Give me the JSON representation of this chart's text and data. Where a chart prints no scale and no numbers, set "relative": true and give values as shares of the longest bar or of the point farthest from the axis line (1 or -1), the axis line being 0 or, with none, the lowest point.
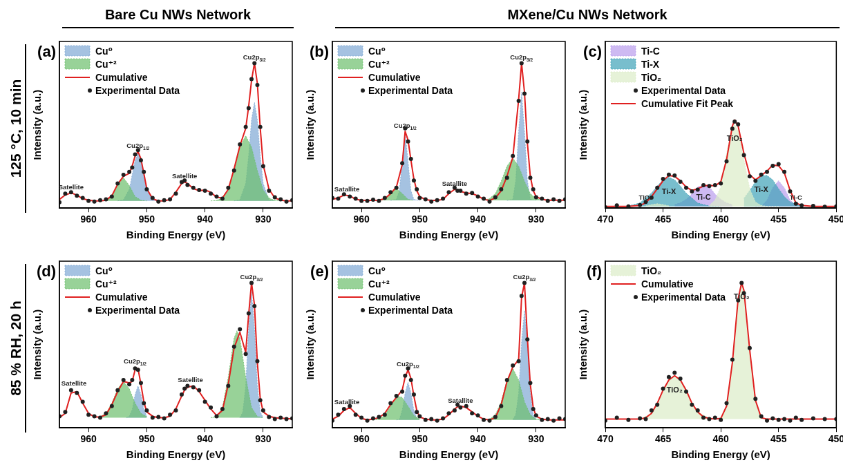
{
  "chart_data": [
    {
      "type": "area",
      "title": "Bare Cu NWs Network",
      "xlabel": "Binding Energy (eV)",
      "ylabel": "Intensity (a.u.)",
      "relative": true,
      "legend": "top left",
      "xlim": [
        965,
        925
      ],
      "xticks": [
        960,
        950,
        940,
        930
      ],
      "x": [
        965,
        964,
        963,
        962,
        961,
        960,
        959,
        958,
        957,
        956,
        955,
        954,
        953,
        952.5,
        952,
        951.5,
        951,
        950.5,
        950,
        949,
        948,
        947,
        946,
        945,
        944,
        943.5,
        943,
        942,
        941,
        940,
        939,
        938,
        937,
        936,
        935,
        934,
        933,
        932.5,
        932,
        931.5,
        931,
        930.5,
        930,
        929,
        928,
        927,
        926,
        925
      ],
      "annotations": [
        "(a)",
        "125 °C, 10 min",
        {
          "text": "Satellite",
          "x": 963,
          "y": 0.105
        },
        {
          "text": "Cu2p$_{1/2}$",
          "x": 951.5,
          "y": 0.39
        },
        {
          "text": "Satellite",
          "x": 943.5,
          "y": 0.18
        },
        {
          "text": "Cu2p$_{3/2}$",
          "x": 931.5,
          "y": 1
        }
      ],
      "series": [
        {
          "name": "Cu⁰",
          "type": "area",
          "color": "#7fa8d4",
          "x": [
            955,
            954,
            953,
            952.5,
            952,
            951.5,
            951,
            950.5,
            950,
            949,
            948,
            940,
            935,
            934,
            933,
            932.5,
            932,
            931.5,
            931,
            930.5,
            930,
            929,
            928
          ],
          "values": [
            0.05,
            0.057,
            0.13,
            0.23,
            0.33,
            0.38,
            0.33,
            0.23,
            0.13,
            0.057,
            0.05,
            null,
            0.05,
            0.057,
            0.17,
            0.36,
            0.61,
            0.73,
            0.61,
            0.36,
            0.17,
            0.057,
            0.05
          ]
        },
        {
          "name": "Cu⁺²",
          "type": "area",
          "color": "#6cbf6c",
          "x": [
            958,
            957,
            956,
            955,
            954,
            953,
            952,
            951,
            950,
            945,
            939,
            938,
            937,
            936,
            935,
            934,
            933,
            932,
            931,
            930,
            929,
            928,
            927
          ],
          "values": [
            0.05,
            0.054,
            0.08,
            0.156,
            0.21,
            0.156,
            0.08,
            0.054,
            0.05,
            null,
            0.05,
            0.053,
            0.07,
            0.126,
            0.26,
            0.42,
            0.5,
            0.42,
            0.26,
            0.126,
            0.07,
            0.053,
            0.05
          ]
        },
        {
          "name": "Cumulative",
          "type": "line",
          "color": "#e02020",
          "values": [
            0.06,
            0.09,
            0.105,
            0.09,
            0.065,
            0.055,
            0.05,
            0.05,
            0.055,
            0.085,
            0.165,
            0.22,
            0.24,
            0.29,
            0.36,
            0.39,
            0.34,
            0.24,
            0.135,
            0.065,
            0.05,
            0.05,
            0.06,
            0.11,
            0.17,
            0.18,
            0.17,
            0.135,
            0.12,
            0.125,
            0.11,
            0.075,
            0.07,
            0.13,
            0.27,
            0.43,
            0.55,
            0.7,
            0.88,
            1,
            0.86,
            0.55,
            0.3,
            0.13,
            0.07,
            0.055,
            0.05,
            0.05
          ]
        },
        {
          "name": "Experimental Data",
          "type": "scatter",
          "marker": "circle",
          "color": "#202020",
          "values": [
            0.04,
            0.1,
            0.11,
            0.085,
            0.07,
            0.05,
            0.045,
            0.055,
            0.06,
            0.08,
            0.17,
            0.23,
            0.25,
            0.28,
            0.37,
            0.4,
            0.33,
            0.25,
            0.13,
            0.07,
            0.045,
            0.055,
            0.06,
            0.1,
            0.18,
            0.19,
            0.16,
            0.14,
            0.125,
            0.12,
            0.1,
            0.08,
            0.065,
            0.14,
            0.26,
            0.44,
            0.56,
            0.69,
            0.89,
            1,
            0.85,
            0.56,
            0.29,
            0.12,
            0.075,
            0.06,
            0.045,
            0.055
          ]
        }
      ]
    },
    {
      "type": "area",
      "title": "MXene/Cu NWs Network",
      "xlabel": "Binding Energy (eV)",
      "ylabel": "Intensity (a.u.)",
      "relative": true,
      "legend": "top left",
      "xlim": [
        965,
        925
      ],
      "xticks": [
        960,
        950,
        940,
        930
      ],
      "x": [
        965,
        964,
        963,
        962,
        961,
        960,
        959,
        958,
        957,
        956,
        955,
        954,
        953,
        952.5,
        952,
        951.5,
        951,
        950.5,
        950,
        949,
        948,
        947,
        946,
        945,
        944,
        943.5,
        943,
        942,
        941,
        940,
        939,
        938,
        937,
        936,
        935,
        934,
        933,
        932.5,
        932,
        931.5,
        931,
        930.5,
        930,
        929,
        928,
        927,
        926,
        925
      ],
      "annotations": [
        "(b)",
        {
          "text": "Satallite",
          "x": 962.5,
          "y": 0.093
        },
        {
          "text": "Cu2p$_{1/2}$",
          "x": 952.5,
          "y": 0.53
        },
        {
          "text": "Satallite",
          "x": 944,
          "y": 0.13
        },
        {
          "text": "Cu2p$_{3/2}$",
          "x": 932.5,
          "y": 1
        }
      ],
      "series": [
        {
          "name": "Cu⁰",
          "type": "area",
          "color": "#7fa8d4",
          "x": [
            955,
            954,
            953.5,
            953,
            952.5,
            952,
            951.5,
            951,
            950,
            940,
            935,
            934,
            933.5,
            933,
            932.5,
            932,
            931.5,
            931,
            930
          ],
          "values": [
            0.053,
            0.06,
            0.12,
            0.32,
            0.52,
            0.32,
            0.12,
            0.06,
            0.053,
            null,
            0.053,
            0.06,
            0.19,
            0.53,
            0.8,
            0.53,
            0.19,
            0.06,
            0.053
          ]
        },
        {
          "name": "Cu⁺²",
          "type": "area",
          "color": "#6cbf6c",
          "x": [
            957,
            956,
            955,
            954,
            953,
            952,
            951,
            945,
            939,
            938,
            937,
            936,
            935,
            934,
            933,
            932,
            931,
            930,
            929,
            928
          ],
          "values": [
            0.053,
            0.06,
            0.1,
            0.137,
            0.1,
            0.06,
            0.053,
            null,
            0.053,
            0.066,
            0.1,
            0.186,
            0.29,
            0.345,
            0.29,
            0.186,
            0.1,
            0.066,
            0.056,
            0.053
          ]
        },
        {
          "name": "Cumulative",
          "type": "line",
          "color": "#e02020",
          "values": [
            0.06,
            0.07,
            0.09,
            0.085,
            0.06,
            0.055,
            0.053,
            0.053,
            0.055,
            0.065,
            0.1,
            0.145,
            0.3,
            0.53,
            0.47,
            0.33,
            0.2,
            0.12,
            0.08,
            0.058,
            0.053,
            0.053,
            0.06,
            0.1,
            0.13,
            0.125,
            0.115,
            0.105,
            0.1,
            0.085,
            0.06,
            0.053,
            0.07,
            0.12,
            0.22,
            0.35,
            0.75,
            1,
            0.8,
            0.45,
            0.22,
            0.12,
            0.08,
            0.06,
            0.055,
            0.055,
            0.055,
            0.055
          ]
        },
        {
          "name": "Experimental Data",
          "type": "scatter",
          "marker": "circle",
          "color": "#202020",
          "values": [
            0.07,
            0.065,
            0.095,
            0.08,
            0.065,
            0.05,
            0.05,
            0.058,
            0.05,
            0.07,
            0.11,
            0.14,
            0.31,
            0.55,
            0.46,
            0.34,
            0.19,
            0.13,
            0.07,
            0.06,
            0.045,
            0.055,
            0.065,
            0.11,
            0.14,
            0.12,
            0.12,
            0.1,
            0.105,
            0.08,
            0.065,
            0.045,
            0.075,
            0.13,
            0.21,
            0.36,
            0.74,
            1,
            0.79,
            0.46,
            0.21,
            0.13,
            0.075,
            0.065,
            0.05,
            0.06,
            0.05,
            0.06
          ]
        }
      ]
    },
    {
      "type": "area",
      "xlabel": "Binding Energy (eV)",
      "ylabel": "Intensity (a.u.)",
      "relative": true,
      "legend": "top left",
      "xlim": [
        470,
        450
      ],
      "xticks": [
        470,
        465,
        460,
        455,
        450
      ],
      "x": [
        470,
        469,
        468,
        467,
        466.5,
        466,
        465.5,
        465,
        464.5,
        464,
        463.5,
        463,
        462.5,
        462,
        461.5,
        461,
        460.5,
        460,
        459.5,
        459,
        458.8,
        458.5,
        458,
        457.5,
        457,
        456.5,
        456,
        455.5,
        455,
        454.5,
        454,
        453.5,
        453,
        452,
        451,
        450
      ],
      "annotations": [
        "(c)",
        {
          "text": "TiO₂",
          "x": 466.5,
          "y": 0.06
        },
        {
          "text": "Ti-X",
          "x": 464.5,
          "y": 0.35
        },
        {
          "text": "Ti-C",
          "x": 461.5,
          "y": 0.26
        },
        {
          "text": "TiO₂",
          "x": 458.8,
          "y": 0.95
        },
        {
          "text": "Ti-X",
          "x": 456.5,
          "y": 0.37
        },
        {
          "text": "Ti-C",
          "x": 453.5,
          "y": 0.06
        }
      ],
      "series": [
        {
          "name": "Ti-C",
          "type": "area",
          "color": "#b99cec",
          "x": [
            464,
            463.5,
            463,
            462.5,
            462,
            461.5,
            461,
            460.5,
            460,
            459.5,
            459,
            458,
            457,
            456.5,
            456,
            455.5,
            455,
            454.5,
            454,
            453.5,
            453
          ],
          "values": [
            0.04,
            0.06,
            0.1,
            0.16,
            0.24,
            0.26,
            0.24,
            0.16,
            0.1,
            0.06,
            0.04,
            null,
            0.02,
            0.02,
            0.09,
            0.23,
            0.31,
            0.23,
            0.09,
            0.03,
            0.02
          ]
        },
        {
          "name": "Ti-X",
          "type": "area",
          "color": "#3fa3b8",
          "x": [
            468,
            467,
            466,
            465.5,
            465,
            464.5,
            464,
            463.5,
            463,
            462,
            461,
            460,
            459,
            458,
            457.5,
            457,
            456.5,
            456,
            455.5,
            455,
            454.5,
            454,
            453,
            452
          ],
          "values": [
            0.025,
            0.058,
            0.17,
            0.25,
            0.32,
            0.35,
            0.32,
            0.25,
            0.17,
            0.058,
            0.025,
            0.02,
            null,
            0.11,
            0.2,
            0.3,
            0.37,
            0.37,
            0.32,
            0.22,
            0.13,
            0.07,
            0.025,
            0.02
          ]
        },
        {
          "name": "TiO₂",
          "type": "area",
          "color": "#dcecc8",
          "x": [
            466.5,
            466,
            465.5,
            465,
            464.5,
            463,
            461,
            460.5,
            460,
            459.5,
            459,
            458.8,
            458.5,
            458,
            457.5,
            457,
            456.5,
            456,
            455
          ],
          "values": [
            0.025,
            0.04,
            0.05,
            0.04,
            0.025,
            null,
            0.03,
            0.09,
            0.24,
            0.62,
            0.92,
            0.95,
            0.88,
            0.55,
            0.22,
            0.07,
            0.03,
            0.02,
            0.02
          ]
        },
        {
          "name": "Experimental Data",
          "type": "scatter",
          "marker": "circle",
          "color": "#202020",
          "values": [
            0.01,
            0.03,
            0.02,
            0.035,
            0.07,
            0.12,
            0.23,
            0.33,
            0.38,
            0.37,
            0.3,
            0.23,
            0.19,
            0.21,
            0.26,
            0.25,
            0.26,
            0.28,
            0.53,
            0.9,
            0.98,
            0.95,
            0.6,
            0.36,
            0.31,
            0.38,
            0.41,
            0.48,
            0.5,
            0.41,
            0.19,
            0.05,
            0.03,
            0.025,
            0.015,
            0.02
          ]
        },
        {
          "name": "Cumulative Fit Peak",
          "type": "line",
          "color": "#e02020",
          "values": [
            0.02,
            0.02,
            0.02,
            0.03,
            0.06,
            0.13,
            0.22,
            0.31,
            0.37,
            0.36,
            0.31,
            0.24,
            0.2,
            0.22,
            0.25,
            0.26,
            0.25,
            0.3,
            0.55,
            0.93,
            1,
            0.93,
            0.62,
            0.38,
            0.32,
            0.37,
            0.42,
            0.49,
            0.48,
            0.4,
            0.2,
            0.06,
            0.03,
            0.02,
            0.02,
            0.02
          ]
        }
      ]
    },
    {
      "type": "area",
      "xlabel": "Binding Energy (eV)",
      "ylabel": "Intensity (a.u.)",
      "relative": true,
      "legend": "top left",
      "xlim": [
        965,
        925
      ],
      "xticks": [
        960,
        950,
        940,
        930
      ],
      "x": [
        965,
        964,
        963,
        962,
        961,
        960,
        959,
        958,
        957,
        956,
        955,
        954,
        953,
        952.5,
        952,
        951.5,
        951,
        950.5,
        950,
        949,
        948,
        947,
        946,
        945,
        944,
        943.5,
        943,
        942,
        941,
        940,
        939,
        938,
        937,
        936,
        935,
        934,
        933,
        932.5,
        932,
        931.5,
        931,
        930.5,
        930,
        929,
        928,
        927,
        926,
        925
      ],
      "annotations": [
        "(d)",
        "85 % RH, 20 h",
        {
          "text": "Satellite",
          "x": 962.5,
          "y": 0.27
        },
        {
          "text": "Cu2p$_{1/2}$",
          "x": 952,
          "y": 0.42
        },
        {
          "text": "Satellite",
          "x": 942.5,
          "y": 0.29
        },
        {
          "text": "Cu2p$_{3/2}$",
          "x": 932,
          "y": 1
        }
      ],
      "series": [
        {
          "name": "Cu⁰",
          "type": "area",
          "color": "#7fa8d4",
          "x": [
            953.5,
            953,
            952.5,
            952,
            951.5,
            951,
            950.5,
            950,
            945,
            934,
            933.5,
            933,
            932.5,
            932,
            931.5,
            931,
            930.5,
            930
          ],
          "values": [
            0.07,
            0.08,
            0.125,
            0.23,
            0.29,
            0.23,
            0.125,
            0.08,
            null,
            0.07,
            0.11,
            0.29,
            0.69,
            0.94,
            0.69,
            0.29,
            0.11,
            0.07
          ]
        },
        {
          "name": "Cu⁺²",
          "type": "area",
          "color": "#6cbf6c",
          "x": [
            958,
            957,
            956,
            955,
            954,
            953,
            952,
            951,
            950,
            945,
            939,
            938,
            937,
            936,
            935,
            934.5,
            934,
            933,
            932,
            931,
            930
          ],
          "values": [
            0.078,
            0.1,
            0.17,
            0.27,
            0.32,
            0.27,
            0.17,
            0.1,
            0.078,
            null,
            0.07,
            0.078,
            0.14,
            0.35,
            0.62,
            0.67,
            0.62,
            0.35,
            0.14,
            0.078,
            0.07
          ]
        },
        {
          "name": "Cumulative",
          "type": "line",
          "color": "#e02020",
          "values": [
            0.07,
            0.1,
            0.24,
            0.25,
            0.17,
            0.1,
            0.075,
            0.075,
            0.09,
            0.16,
            0.25,
            0.32,
            0.31,
            0.32,
            0.4,
            0.41,
            0.3,
            0.18,
            0.11,
            0.08,
            0.07,
            0.07,
            0.08,
            0.13,
            0.22,
            0.26,
            0.28,
            0.29,
            0.25,
            0.19,
            0.13,
            0.085,
            0.12,
            0.3,
            0.55,
            0.66,
            0.52,
            0.78,
            1,
            0.85,
            0.45,
            0.2,
            0.11,
            0.08,
            0.07,
            0.065,
            0.065,
            0.06
          ]
        },
        {
          "name": "Experimental Data",
          "type": "scatter",
          "marker": "circle",
          "color": "#202020",
          "values": [
            0.08,
            0.11,
            0.26,
            0.24,
            0.18,
            0.09,
            0.08,
            0.07,
            0.1,
            0.15,
            0.26,
            0.33,
            0.3,
            0.33,
            0.41,
            0.4,
            0.31,
            0.17,
            0.12,
            0.07,
            0.075,
            0.065,
            0.09,
            0.12,
            0.23,
            0.27,
            0.29,
            0.28,
            0.26,
            0.18,
            0.14,
            0.08,
            0.13,
            0.29,
            0.56,
            0.68,
            0.51,
            0.79,
            1,
            0.84,
            0.46,
            0.19,
            0.12,
            0.075,
            0.06,
            0.07,
            0.06,
            0.065
          ]
        }
      ]
    },
    {
      "type": "area",
      "xlabel": "Binding Energy (eV)",
      "ylabel": "Intensity (a.u.)",
      "relative": true,
      "legend": "top left",
      "xlim": [
        965,
        925
      ],
      "xticks": [
        960,
        950,
        940,
        930
      ],
      "x": [
        965,
        964,
        963,
        962,
        961,
        960,
        959,
        958,
        957,
        956,
        955,
        954,
        953,
        952.5,
        952,
        951.5,
        951,
        950.5,
        950,
        949,
        948,
        947,
        946,
        945,
        944,
        943.5,
        943,
        942,
        941,
        940,
        939,
        938,
        937,
        936,
        935,
        934,
        933,
        932.5,
        932,
        931.5,
        931,
        930.5,
        930,
        929,
        928,
        927,
        926,
        925
      ],
      "annotations": [
        "(e)",
        {
          "text": "Satallite",
          "x": 962.5,
          "y": 0.14
        },
        {
          "text": "Cu2p$_{1/2}$",
          "x": 952,
          "y": 0.4
        },
        {
          "text": "Satallite",
          "x": 943,
          "y": 0.15
        },
        {
          "text": "Cu2p$_{3/2}$",
          "x": 932,
          "y": 1
        }
      ],
      "series": [
        {
          "name": "Cu⁰",
          "type": "area",
          "color": "#7fa8d4",
          "x": [
            954,
            953.5,
            953,
            952.5,
            952,
            951.5,
            951,
            950.5,
            950,
            945,
            934,
            933.5,
            933,
            932.5,
            932,
            931.5,
            931,
            930.5,
            930
          ],
          "values": [
            0.055,
            0.057,
            0.12,
            0.24,
            0.315,
            0.24,
            0.12,
            0.067,
            0.056,
            null,
            0.058,
            0.09,
            0.24,
            0.59,
            0.81,
            0.59,
            0.24,
            0.09,
            0.058
          ]
        },
        {
          "name": "Cu⁺²",
          "type": "area",
          "color": "#6cbf6c",
          "x": [
            958,
            957,
            956,
            955,
            954,
            953.5,
            953,
            952,
            951,
            950,
            945,
            939,
            938,
            937,
            936,
            935,
            934,
            933,
            932,
            931,
            930,
            929
          ],
          "values": [
            0.055,
            0.06,
            0.085,
            0.15,
            0.21,
            0.215,
            0.21,
            0.15,
            0.085,
            0.06,
            null,
            0.056,
            0.06,
            0.09,
            0.18,
            0.33,
            0.41,
            0.33,
            0.18,
            0.09,
            0.06,
            0.056
          ]
        },
        {
          "name": "Cumulative",
          "type": "line",
          "color": "#e02020",
          "values": [
            0.06,
            0.08,
            0.12,
            0.14,
            0.1,
            0.065,
            0.055,
            0.06,
            0.07,
            0.1,
            0.16,
            0.21,
            0.26,
            0.35,
            0.4,
            0.34,
            0.22,
            0.12,
            0.075,
            0.06,
            0.055,
            0.055,
            0.06,
            0.09,
            0.13,
            0.145,
            0.15,
            0.14,
            0.11,
            0.08,
            0.06,
            0.055,
            0.07,
            0.16,
            0.32,
            0.42,
            0.47,
            0.9,
            1,
            0.62,
            0.3,
            0.14,
            0.08,
            0.06,
            0.055,
            0.055,
            0.055,
            0.055
          ]
        },
        {
          "name": "Experimental Data",
          "type": "scatter",
          "marker": "circle",
          "color": "#202020",
          "values": [
            0.05,
            0.09,
            0.13,
            0.15,
            0.09,
            0.07,
            0.05,
            0.065,
            0.075,
            0.09,
            0.17,
            0.22,
            0.25,
            0.36,
            0.41,
            0.33,
            0.23,
            0.11,
            0.08,
            0.055,
            0.06,
            0.05,
            0.065,
            0.1,
            0.12,
            0.16,
            0.14,
            0.15,
            0.1,
            0.085,
            0.055,
            0.05,
            0.075,
            0.15,
            0.33,
            0.43,
            0.46,
            0.91,
            1,
            0.61,
            0.31,
            0.13,
            0.085,
            0.055,
            0.06,
            0.05,
            0.065,
            0.06
          ]
        }
      ]
    },
    {
      "type": "area",
      "xlabel": "Binding Energy (eV)",
      "ylabel": "Intensity (a.u.)",
      "relative": true,
      "legend": "top left",
      "xlim": [
        470,
        450
      ],
      "xticks": [
        470,
        465,
        460,
        455,
        450
      ],
      "x": [
        470,
        469,
        468,
        467,
        466.5,
        466,
        465.5,
        465,
        464.5,
        464,
        463.5,
        463,
        462.5,
        462,
        461.5,
        461,
        460.5,
        460,
        459.5,
        459,
        458.5,
        458.2,
        458,
        457.5,
        457,
        456.5,
        456,
        455.5,
        455,
        454.5,
        454,
        453.5,
        453,
        452,
        451,
        450
      ],
      "annotations": [
        "(f)",
        {
          "text": "TiO₂",
          "x": 464,
          "y": 0.36
        },
        {
          "text": "TiO₂",
          "x": 458.2,
          "y": 1
        }
      ],
      "series": [
        {
          "name": "TiO₂",
          "type": "area",
          "color": "#dcecc8",
          "x": [
            467,
            466,
            465.5,
            465,
            464.5,
            464,
            463.5,
            463,
            462.5,
            462,
            461,
            460,
            459.5,
            459,
            458.5,
            458.2,
            458,
            457.5,
            457,
            456.5,
            456
          ],
          "values": [
            0.06,
            0.1,
            0.17,
            0.26,
            0.33,
            0.36,
            0.33,
            0.26,
            0.17,
            0.11,
            0.065,
            0.065,
            0.15,
            0.45,
            0.89,
            1,
            0.95,
            0.54,
            0.19,
            0.07,
            0.06
          ]
        },
        {
          "name": "Cumulative",
          "type": "line",
          "color": "#e02020",
          "values": [
            0.06,
            0.06,
            0.06,
            0.06,
            0.07,
            0.1,
            0.17,
            0.26,
            0.33,
            0.36,
            0.33,
            0.26,
            0.17,
            0.11,
            0.075,
            0.065,
            0.06,
            0.065,
            0.15,
            0.45,
            0.89,
            1,
            0.95,
            0.54,
            0.19,
            0.07,
            0.06,
            0.06,
            0.06,
            0.06,
            0.06,
            0.06,
            0.06,
            0.06,
            0.06,
            0.06
          ]
        },
        {
          "name": "Experimental Data",
          "type": "scatter",
          "marker": "circle",
          "color": "#202020",
          "values": [
            0.05,
            0.07,
            0.055,
            0.065,
            0.06,
            0.12,
            0.16,
            0.27,
            0.35,
            0.38,
            0.34,
            0.25,
            0.16,
            0.12,
            0.07,
            0.06,
            0.07,
            0.055,
            0.17,
            0.47,
            0.88,
            1,
            0.93,
            0.55,
            0.2,
            0.08,
            0.05,
            0.065,
            0.055,
            0.06,
            0.05,
            0.07,
            0.055,
            0.065,
            0.06,
            0.06
          ]
        }
      ]
    }
  ]
}
